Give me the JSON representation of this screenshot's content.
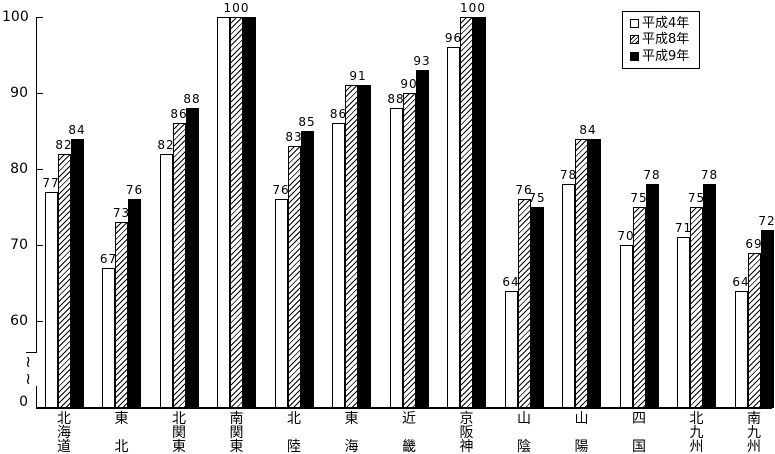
{
  "colors": {
    "foreground": "#000000",
    "background": "#ffffff"
  },
  "chart_data": {
    "type": "bar",
    "title": "",
    "xlabel": "",
    "ylabel": "",
    "categories": [
      "北海道",
      "東北",
      "北関東",
      "南関東",
      "北陸",
      "東海",
      "近畿",
      "京阪神",
      "山陰",
      "山陽",
      "四国",
      "北九州",
      "南九州"
    ],
    "series": [
      {
        "name": "平成4年",
        "fill": "white",
        "values": [
          77,
          67,
          82,
          100,
          76,
          86,
          88,
          96,
          64,
          78,
          70,
          71,
          64
        ]
      },
      {
        "name": "平成8年",
        "fill": "hatch",
        "values": [
          82,
          73,
          86,
          100,
          83,
          91,
          90,
          100,
          76,
          84,
          75,
          75,
          69
        ]
      },
      {
        "name": "平成9年",
        "fill": "black",
        "values": [
          84,
          76,
          88,
          100,
          85,
          91,
          93,
          100,
          75,
          84,
          78,
          78,
          72
        ]
      }
    ],
    "y_ticks": [
      100,
      90,
      80,
      70,
      60
    ],
    "y_base_label": "0",
    "ylim": [
      60,
      100
    ],
    "y_axis_break": true,
    "grid": false,
    "legend_position": "top-right",
    "bar_value_labels_shown": true
  }
}
